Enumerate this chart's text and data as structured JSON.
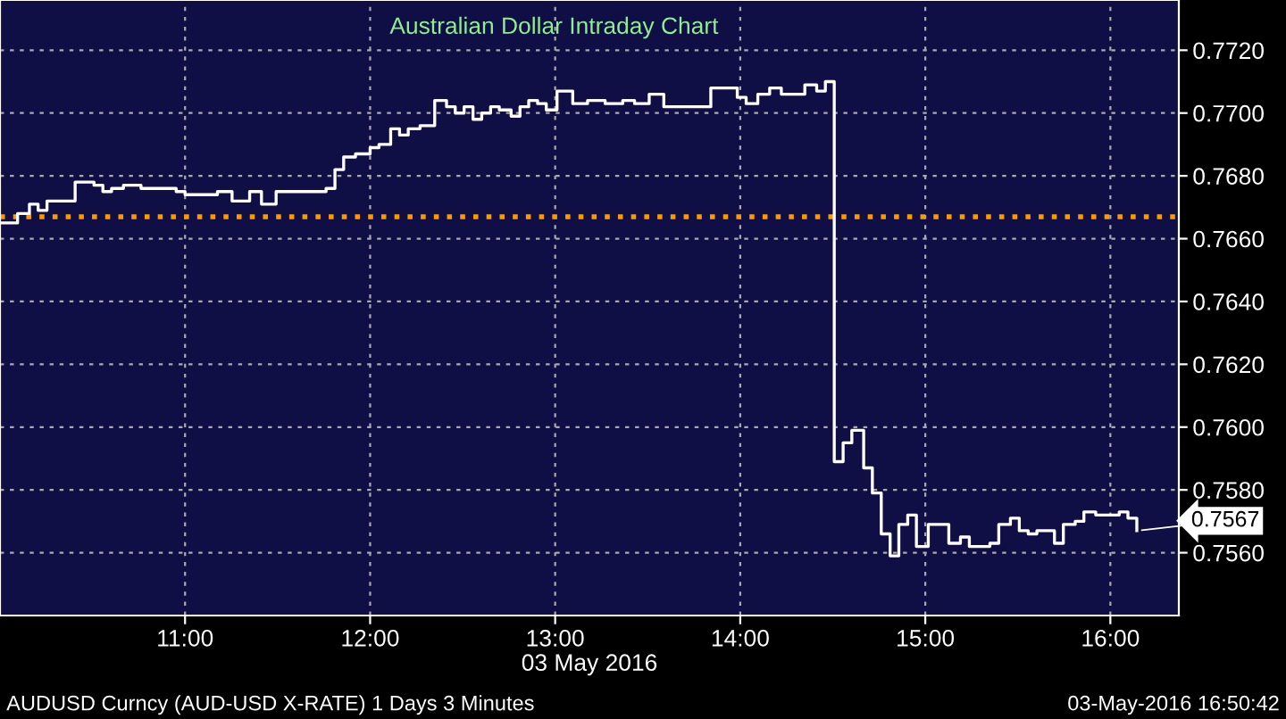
{
  "chart_data": {
    "type": "step",
    "title": "Australian Dollar Intraday Chart",
    "xlabel": "03 May 2016",
    "x": [
      10.0,
      10.095,
      10.159,
      10.206,
      10.254,
      10.302,
      10.406,
      10.46,
      10.508,
      10.556,
      10.603,
      10.667,
      10.762,
      10.857,
      10.952,
      11.0,
      11.095,
      11.175,
      11.254,
      11.349,
      11.413,
      11.492,
      11.587,
      11.714,
      11.762,
      11.81,
      11.857,
      11.921,
      12.0,
      12.048,
      12.111,
      12.159,
      12.206,
      12.27,
      12.349,
      12.413,
      12.46,
      12.508,
      12.556,
      12.603,
      12.651,
      12.698,
      12.762,
      12.81,
      12.857,
      12.905,
      12.952,
      13.01,
      13.095,
      13.175,
      13.27,
      13.365,
      13.429,
      13.508,
      13.587,
      13.683,
      13.778,
      13.841,
      13.921,
      13.984,
      14.032,
      14.095,
      14.159,
      14.222,
      14.286,
      14.349,
      14.413,
      14.46,
      14.508,
      14.556,
      14.603,
      14.667,
      14.714,
      14.762,
      14.81,
      14.857,
      14.905,
      14.952,
      15.016,
      15.063,
      15.127,
      15.19,
      15.238,
      15.302,
      15.349,
      15.397,
      15.46,
      15.508,
      15.556,
      15.603,
      15.651,
      15.698,
      15.746,
      15.81,
      15.857,
      15.921,
      16.0,
      16.048,
      16.095,
      16.143
    ],
    "series": [
      {
        "color": "#ffffff",
        "values": [
          0.7665,
          0.7668,
          0.7671,
          0.7669,
          0.7672,
          0.7672,
          0.7678,
          0.7678,
          0.7677,
          0.7675,
          0.7676,
          0.7677,
          0.7676,
          0.7676,
          0.7675,
          0.7674,
          0.7674,
          0.7675,
          0.7672,
          0.7675,
          0.7671,
          0.7675,
          0.7675,
          0.7675,
          0.7676,
          0.7682,
          0.7686,
          0.7687,
          0.7689,
          0.769,
          0.7695,
          0.7693,
          0.7695,
          0.7696,
          0.7704,
          0.7702,
          0.77,
          0.7702,
          0.7698,
          0.77,
          0.7702,
          0.7701,
          0.7699,
          0.7702,
          0.7704,
          0.7703,
          0.7701,
          0.7707,
          0.7703,
          0.7704,
          0.7703,
          0.7704,
          0.7703,
          0.7706,
          0.7702,
          0.7702,
          0.7702,
          0.7708,
          0.7708,
          0.7705,
          0.7703,
          0.7706,
          0.7708,
          0.7706,
          0.7706,
          0.7709,
          0.7707,
          0.771,
          0.7589,
          0.7595,
          0.7599,
          0.7587,
          0.7579,
          0.7566,
          0.7559,
          0.7569,
          0.7572,
          0.7562,
          0.7569,
          0.7569,
          0.7563,
          0.7565,
          0.7562,
          0.7562,
          0.7563,
          0.7569,
          0.7571,
          0.7567,
          0.7566,
          0.7567,
          0.7567,
          0.7563,
          0.7569,
          0.757,
          0.7573,
          0.7572,
          0.7572,
          0.7573,
          0.7571,
          0.7567
        ]
      }
    ],
    "xlim": [
      10.0,
      16.37
    ],
    "ylim": [
      0.754,
      0.7736
    ],
    "xticks": [
      {
        "value": 11,
        "label": "11:00"
      },
      {
        "value": 12,
        "label": "12:00"
      },
      {
        "value": 13,
        "label": "13:00"
      },
      {
        "value": 14,
        "label": "14:00"
      },
      {
        "value": 15,
        "label": "15:00"
      },
      {
        "value": 16,
        "label": "16:00"
      }
    ],
    "yticks": [
      {
        "value": 0.756,
        "label": "0.7560"
      },
      {
        "value": 0.758,
        "label": "0.7580"
      },
      {
        "value": 0.76,
        "label": "0.7600"
      },
      {
        "value": 0.762,
        "label": "0.7620"
      },
      {
        "value": 0.764,
        "label": "0.7640"
      },
      {
        "value": 0.766,
        "label": "0.7660"
      },
      {
        "value": 0.768,
        "label": "0.7680"
      },
      {
        "value": 0.77,
        "label": "0.7700"
      },
      {
        "value": 0.772,
        "label": "0.7720"
      }
    ],
    "ref_lines": [
      {
        "axis": "y",
        "value": 0.7667,
        "color": "#ff9900",
        "line_style": "dotted"
      }
    ],
    "grid": true,
    "line_style": "solid",
    "marker": "none",
    "annotations": [
      {
        "text": "0.7567",
        "x": 16.143,
        "y": 0.7567
      },
      "AUDUSD Curncy (AUD-USD X-RATE) 1 Days 3 Minutes",
      "03-May-2016 16:50:42"
    ]
  }
}
